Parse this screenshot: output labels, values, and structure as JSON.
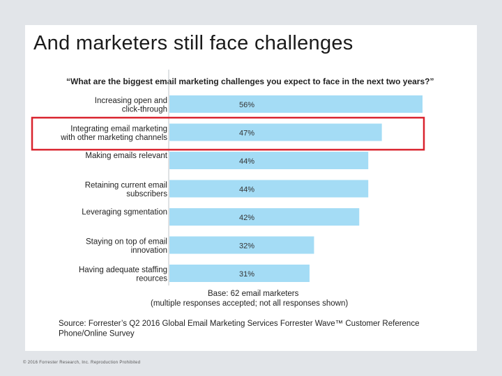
{
  "slide": {
    "title": "And marketers still face challenges",
    "footer": "© 2016 Forrester Research, Inc. Reproduction Prohibited"
  },
  "chart_data": {
    "type": "bar",
    "orientation": "horizontal",
    "title": "“What are the biggest email marketing challenges you expect to face in the next two years?”",
    "categories": [
      [
        "Increasing open and",
        "click-through"
      ],
      [
        "Integrating email marketing",
        "with other marketing channels"
      ],
      [
        "Making emails relevant"
      ],
      [
        "Retaining current email",
        "subscribers"
      ],
      [
        "Leveraging sgmentation"
      ],
      [
        "Staying on top of email",
        "innovation"
      ],
      [
        "Having adequate staffing",
        "reources"
      ]
    ],
    "values": [
      56,
      47,
      44,
      44,
      42,
      32,
      31
    ],
    "value_labels": [
      "56%",
      "47%",
      "44%",
      "44%",
      "42%",
      "32%",
      "31%"
    ],
    "xlim": [
      0,
      56
    ],
    "highlighted_index": 1,
    "note": [
      "Base: 62 email marketers",
      "(multiple responses accepted; not all responses shown)"
    ],
    "source": [
      "Source: Forrester’s Q2 2016 Global Email Marketing Services Forrester Wave™ Customer Reference",
      "Phone/Online Survey"
    ],
    "colors": {
      "bar": "#a4dcf5",
      "highlight": "#d9232e",
      "axis": "#bfc5ca"
    }
  }
}
